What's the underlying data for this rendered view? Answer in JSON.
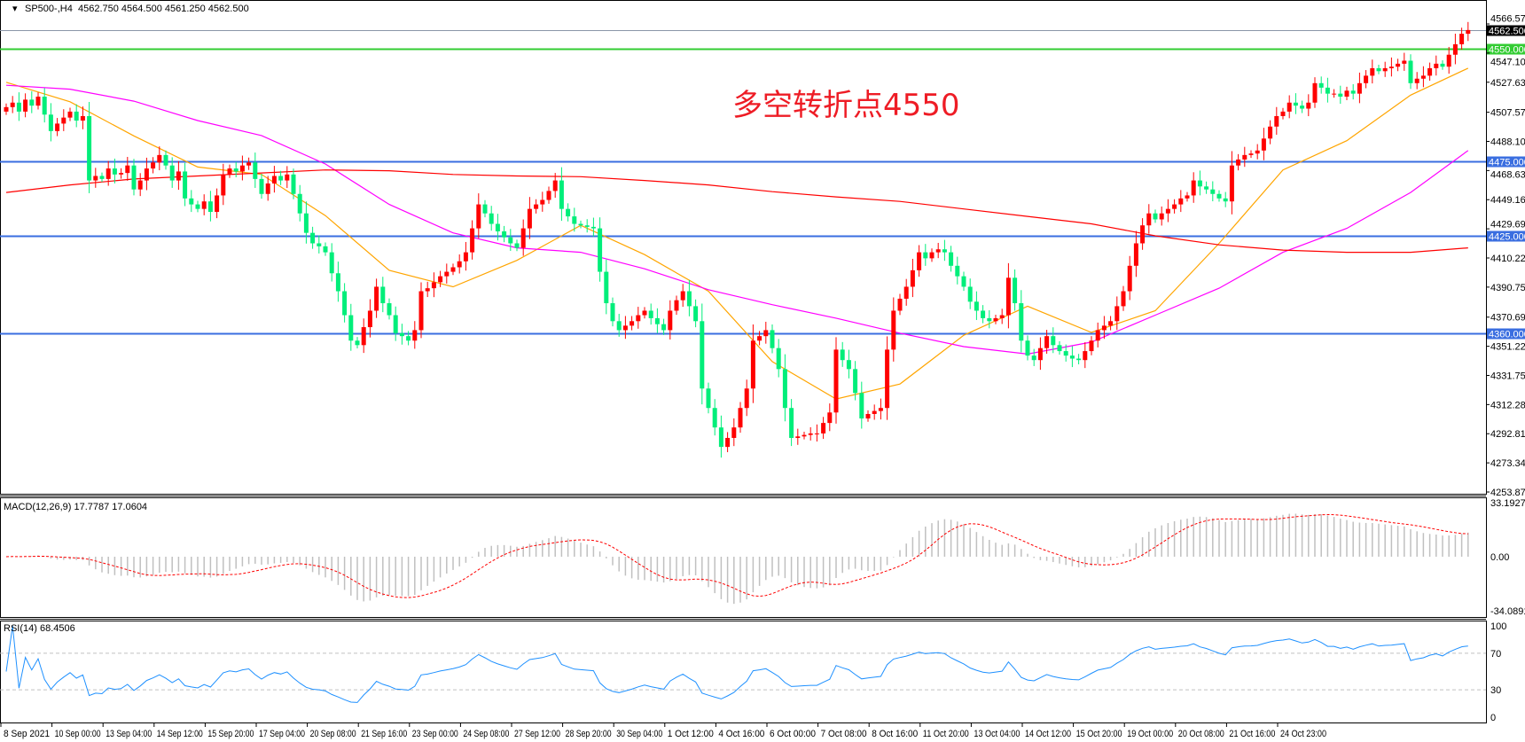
{
  "header": {
    "symbol": "SP500-,H4",
    "ohlc": "4562.750 4564.500 4561.250 4562.500"
  },
  "annotation": "多空转折点4550",
  "price_axis": [
    "4566.570",
    "4547.100",
    "4527.630",
    "4507.570",
    "4488.100",
    "4468.630",
    "4449.160",
    "4429.690",
    "4410.220",
    "4390.750",
    "4370.690",
    "4351.220",
    "4331.750",
    "4312.280",
    "4292.810",
    "4273.340",
    "4253.870"
  ],
  "levels": [
    {
      "label": "4562.500",
      "value": 4562.5,
      "color": "#8a96a8",
      "tag_bg": "#000000",
      "kind": "bid"
    },
    {
      "label": "4550.000",
      "value": 4550,
      "color": "#33cc33",
      "tag_bg": "#33cc33",
      "kind": "support"
    },
    {
      "label": "4475.000",
      "value": 4475,
      "color": "#3a6ee0",
      "tag_bg": "#3a6ee0",
      "kind": "level"
    },
    {
      "label": "4425.000",
      "value": 4425,
      "color": "#3a6ee0",
      "tag_bg": "#3a6ee0",
      "kind": "level"
    },
    {
      "label": "4360.000",
      "value": 4360,
      "color": "#3a6ee0",
      "tag_bg": "#3a6ee0",
      "kind": "level"
    }
  ],
  "macd": {
    "title": "MACD(12,26,9) 17.7787 17.0604",
    "axis": [
      "33.1927",
      "0.00",
      "-34.0891"
    ],
    "max": 33.1927,
    "min": -34.0891
  },
  "rsi": {
    "title": "RSI(14) 68.4506",
    "axis": [
      "100",
      "70",
      "30",
      "0"
    ]
  },
  "time_axis": [
    "8 Sep 2021",
    "10 Sep 00:00",
    "13 Sep 04:00",
    "14 Sep 12:00",
    "15 Sep 20:00",
    "17 Sep 04:00",
    "20 Sep 08:00",
    "21 Sep 16:00",
    "23 Sep 00:00",
    "24 Sep 08:00",
    "27 Sep 12:00",
    "28 Sep 20:00",
    "30 Sep 04:00",
    "1 Oct 12:00",
    "4 Oct 16:00",
    "6 Oct 00:00",
    "7 Oct 08:00",
    "8 Oct 16:00",
    "11 Oct 20:00",
    "13 Oct 04:00",
    "14 Oct 12:00",
    "15 Oct 20:00",
    "19 Oct 00:00",
    "20 Oct 08:00",
    "21 Oct 16:00",
    "24 Oct 23:00"
  ],
  "colors": {
    "up": "#ff0000",
    "down": "#00ee7a",
    "ma_fast": "#ffa500",
    "ma_mid": "#ff00ff",
    "ma_slow": "#ff0000",
    "macd_hist": "#c0c0c0",
    "macd_signal": "#ff0000",
    "rsi": "#1e90ff"
  },
  "chart_data": {
    "type": "candlestick",
    "timeframe": "H4",
    "ylim": [
      4253.87,
      4566.57
    ],
    "first_open": 4508,
    "close": [
      4511,
      4514,
      4508,
      4516,
      4512,
      4518,
      4506,
      4495,
      4500,
      4504,
      4508,
      4502,
      4505,
      4462,
      4465,
      4463,
      4470,
      4466,
      4467,
      4472,
      4456,
      4462,
      4470,
      4474,
      4479,
      4472,
      4462,
      4468,
      4450,
      4446,
      4443,
      4448,
      4441,
      4452,
      4466,
      4470,
      4468,
      4472,
      4474,
      4463,
      4453,
      4460,
      4465,
      4462,
      4466,
      4453,
      4440,
      4427,
      4420,
      4418,
      4414,
      4400,
      4388,
      4372,
      4355,
      4352,
      4364,
      4375,
      4391,
      4380,
      4372,
      4360,
      4358,
      4355,
      4362,
      4388,
      4390,
      4394,
      4398,
      4401,
      4404,
      4408,
      4414,
      4430,
      4446,
      4440,
      4433,
      4428,
      4424,
      4420,
      4417,
      4430,
      4443,
      4446,
      4449,
      4455,
      4462,
      4443,
      4438,
      4433,
      4432,
      4431,
      4430,
      4401,
      4380,
      4368,
      4362,
      4365,
      4368,
      4372,
      4375,
      4370,
      4366,
      4362,
      4375,
      4382,
      4388,
      4378,
      4368,
      4323,
      4310,
      4297,
      4284,
      4290,
      4297,
      4310,
      4323,
      4355,
      4358,
      4362,
      4350,
      4336,
      4310,
      4290,
      4291,
      4292,
      4293,
      4293,
      4300,
      4307,
      4349,
      4342,
      4336,
      4320,
      4303,
      4306,
      4308,
      4310,
      4349,
      4375,
      4383,
      4391,
      4402,
      4414,
      4410,
      4414,
      4416,
      4414,
      4405,
      4398,
      4391,
      4381,
      4375,
      4370,
      4368,
      4370,
      4372,
      4397,
      4380,
      4355,
      4345,
      4342,
      4350,
      4358,
      4352,
      4348,
      4345,
      4343,
      4342,
      4348,
      4355,
      4362,
      4365,
      4368,
      4378,
      4388,
      4405,
      4420,
      4432,
      4440,
      4436,
      4440,
      4443,
      4446,
      4450,
      4452,
      4462,
      4458,
      4456,
      4453,
      4450,
      4448,
      4472,
      4476,
      4479,
      4480,
      4482,
      4490,
      4498,
      4505,
      4508,
      4514,
      4512,
      4510,
      4514,
      4527,
      4524,
      4520,
      4520,
      4518,
      4522,
      4520,
      4527,
      4532,
      4537,
      4535,
      4537,
      4538,
      4540,
      4542,
      4527,
      4530,
      4532,
      4537,
      4540,
      4538,
      4546,
      4553,
      4560,
      4562.5
    ],
    "moving_averages": [
      {
        "role": "fast",
        "values": [
          4527.6,
          4514.6,
          4491.8,
          4471,
          4466,
          4438.5,
          4402,
          4391,
          4408.6,
          4432,
          4412.5,
          4388,
          4341,
          4316,
          4326,
          4358.6,
          4378,
          4360.5,
          4375,
          4420,
          4469,
          4488.6,
          4519,
          4537
        ]
      },
      {
        "role": "mid",
        "values": [
          4525.6,
          4523,
          4515,
          4502,
          4492,
          4473,
          4446,
          4427,
          4417,
          4414,
          4403,
          4389,
          4379,
          4370,
          4360,
          4351,
          4346,
          4354,
          4372,
          4390,
          4414,
          4430,
          4454,
          4482
        ]
      },
      {
        "role": "slow",
        "values": [
          4454,
          4459,
          4463,
          4465,
          4467,
          4469,
          4468.5,
          4466,
          4465,
          4464.5,
          4462,
          4459,
          4454.5,
          4451,
          4448,
          4443,
          4438,
          4433,
          4425,
          4419,
          4415.5,
          4414,
          4414,
          4417
        ]
      }
    ]
  }
}
